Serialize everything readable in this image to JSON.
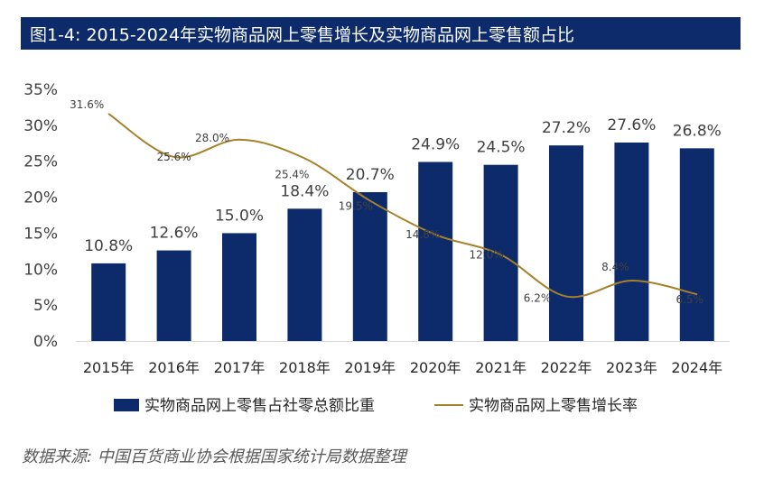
{
  "title": "图1-4: 2015-2024年实物商品网上零售增长及实物商品网上零售额占比",
  "source": "数据来源: 中国百货商业协会根据国家统计局数据整理",
  "colors": {
    "title_bg": "#0d2b6b",
    "bar": "#0d2b6b",
    "line": "#a6812b"
  },
  "chart_data": {
    "type": "bar",
    "categories": [
      "2015年",
      "2016年",
      "2017年",
      "2018年",
      "2019年",
      "2020年",
      "2021年",
      "2022年",
      "2023年",
      "2024年"
    ],
    "y_ticks": [
      "0%",
      "5%",
      "10%",
      "15%",
      "20%",
      "25%",
      "30%",
      "35%"
    ],
    "ylim": [
      0,
      35
    ],
    "legend_position": "bottom",
    "series": [
      {
        "name": "实物商品网上零售占社零总额比重",
        "type": "bar",
        "values": [
          10.8,
          12.6,
          15.0,
          18.4,
          20.7,
          24.9,
          24.5,
          27.2,
          27.6,
          26.8
        ],
        "labels": [
          "10.8%",
          "12.6%",
          "15.0%",
          "18.4%",
          "20.7%",
          "24.9%",
          "24.5%",
          "27.2%",
          "27.6%",
          "26.8%"
        ]
      },
      {
        "name": "实物商品网上零售增长率",
        "type": "line",
        "values": [
          31.6,
          25.6,
          28.0,
          25.4,
          19.5,
          14.8,
          12.0,
          6.2,
          8.4,
          6.5
        ],
        "labels": [
          "31.6%",
          "25.6%",
          "28.0%",
          "25.4%",
          "19.5%",
          "14.8%",
          "12.0%",
          "6.2%",
          "8.4%",
          "6.5%"
        ]
      }
    ]
  }
}
